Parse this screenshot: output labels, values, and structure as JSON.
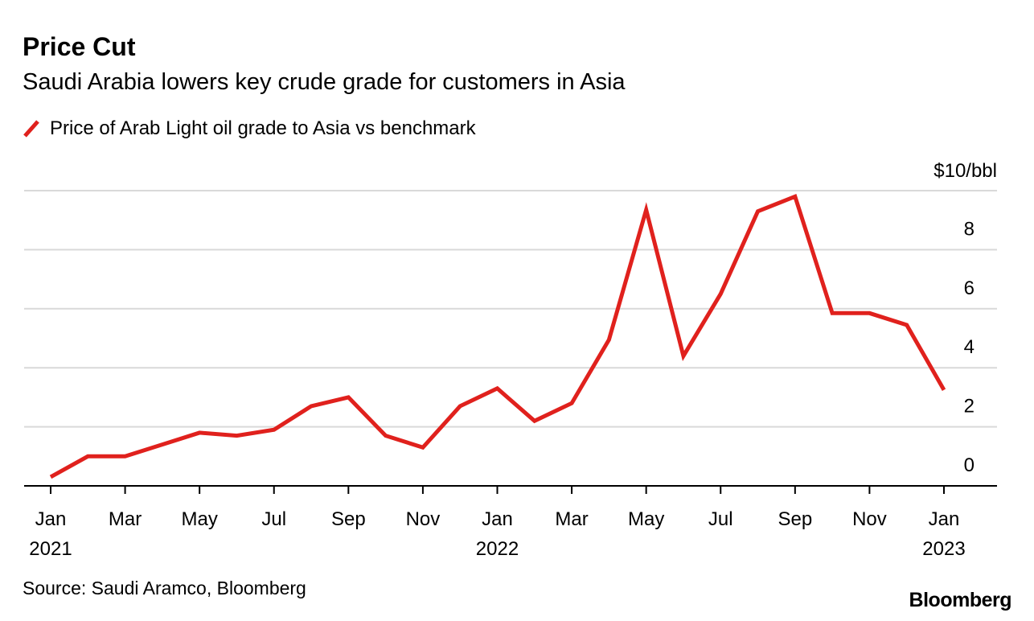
{
  "chart_data": {
    "type": "line",
    "title": "Price Cut",
    "subtitle": "Saudi Arabia lowers key crude grade for customers in Asia",
    "legend": [
      "Price of Arab Light oil grade to Asia vs benchmark"
    ],
    "ylabel": "$10/bbl",
    "ylim": [
      0,
      10
    ],
    "yticks": [
      "0",
      "2",
      "4",
      "6",
      "8"
    ],
    "ytick_values": [
      0,
      2,
      4,
      6,
      8
    ],
    "xtick_labels": [
      "Jan",
      "Mar",
      "May",
      "Jul",
      "Sep",
      "Nov",
      "Jan",
      "Mar",
      "May",
      "Jul",
      "Sep",
      "Nov",
      "Jan"
    ],
    "xtick_index": [
      0,
      2,
      4,
      6,
      8,
      10,
      12,
      14,
      16,
      18,
      20,
      22,
      24
    ],
    "year_labels": [
      {
        "label": "2021",
        "index": 0
      },
      {
        "label": "2022",
        "index": 12
      },
      {
        "label": "2023",
        "index": 24
      }
    ],
    "x": [
      "2021-01",
      "2021-02",
      "2021-03",
      "2021-04",
      "2021-05",
      "2021-06",
      "2021-07",
      "2021-08",
      "2021-09",
      "2021-10",
      "2021-11",
      "2021-12",
      "2022-01",
      "2022-02",
      "2022-03",
      "2022-04",
      "2022-05",
      "2022-06",
      "2022-07",
      "2022-08",
      "2022-09",
      "2022-10",
      "2022-11",
      "2022-12",
      "2023-01"
    ],
    "series": [
      {
        "name": "Price of Arab Light oil grade to Asia vs benchmark",
        "color": "#e0211d",
        "values": [
          0.3,
          1.0,
          1.0,
          1.4,
          1.8,
          1.7,
          1.9,
          2.7,
          3.0,
          1.7,
          1.3,
          2.7,
          3.3,
          2.2,
          2.8,
          4.95,
          9.35,
          4.4,
          6.5,
          9.3,
          9.8,
          5.85,
          5.85,
          5.45,
          3.25
        ]
      }
    ],
    "grid": true,
    "legend_placement": "top-left"
  },
  "source": "Source: Saudi Aramco, Bloomberg",
  "brand": "Bloomberg"
}
